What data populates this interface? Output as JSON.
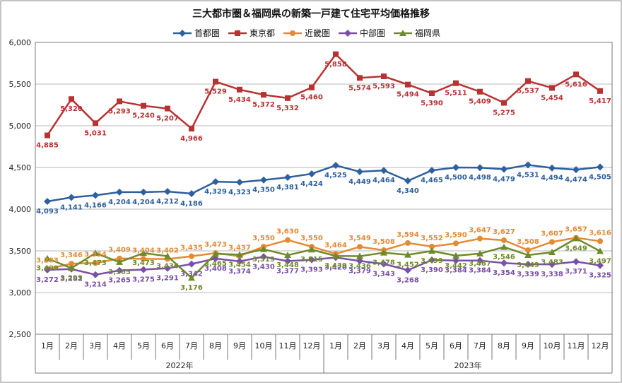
{
  "chart_data": {
    "type": "line",
    "title": "三大都市圏＆福岡県の新築一戸建て住宅平均価格推移",
    "categories": [
      "1月",
      "2月",
      "3月",
      "4月",
      "5月",
      "6月",
      "7月",
      "8月",
      "9月",
      "10月",
      "11月",
      "12月",
      "1月",
      "2月",
      "3月",
      "4月",
      "5月",
      "6月",
      "7月",
      "8月",
      "9月",
      "10月",
      "11月",
      "12月"
    ],
    "year_groups": [
      {
        "label": "2022年",
        "start": 0,
        "end": 11
      },
      {
        "label": "2023年",
        "start": 12,
        "end": 23
      }
    ],
    "ylim": [
      2500,
      6000
    ],
    "yticks": [
      "2,500",
      "3,000",
      "3,500",
      "4,000",
      "4,500",
      "5,000",
      "5,500",
      "6,000"
    ],
    "ytick_values": [
      2500,
      3000,
      3500,
      4000,
      4500,
      5000,
      5500,
      6000
    ],
    "grid": true,
    "legend_position": "top",
    "series": [
      {
        "name": "首都圏",
        "color": "#2e5f9e",
        "marker": "diamond",
        "label_pos": "below",
        "values": [
          4093,
          4141,
          4166,
          4204,
          4204,
          4212,
          4186,
          4329,
          4323,
          4350,
          4381,
          4424,
          4525,
          4449,
          4464,
          4340,
          4465,
          4500,
          4498,
          4479,
          4531,
          4494,
          4474,
          4505
        ],
        "labels": [
          "4,093",
          "4,141",
          "4,166",
          "4,204",
          "4,204",
          "4,212",
          "4,186",
          "4,329",
          "4,323",
          "4,350",
          "4,381",
          "4,424",
          "4,525",
          "4,449",
          "4,464",
          "4,340",
          "4,465",
          "4,500",
          "4,498",
          "4,479",
          "4,531",
          "4,494",
          "4,474",
          "4,505"
        ]
      },
      {
        "name": "東京都",
        "color": "#b83232",
        "marker": "square",
        "label_pos": "below",
        "values": [
          4885,
          5320,
          5031,
          5293,
          5240,
          5207,
          4966,
          5529,
          5434,
          5372,
          5332,
          5460,
          5858,
          5574,
          5593,
          5494,
          5390,
          5511,
          5409,
          5275,
          5537,
          5454,
          5616,
          5417
        ],
        "labels": [
          "4,885",
          "5,320",
          "5,031",
          "5,293",
          "5,240",
          "5,207",
          "4,966",
          "5,529",
          "5,434",
          "5,372",
          "5,332",
          "5,460",
          "5,858",
          "5,574",
          "5,593",
          "5,494",
          "5,390",
          "5,511",
          "5,409",
          "5,275",
          "5,537",
          "5,454",
          "5,616",
          "5,417"
        ]
      },
      {
        "name": "近畿圏",
        "color": "#e48a34",
        "marker": "circle",
        "label_pos": "above",
        "values": [
          3283,
          3346,
          3354,
          3409,
          3404,
          3402,
          3435,
          3473,
          3437,
          3550,
          3630,
          3550,
          3464,
          3549,
          3508,
          3594,
          3552,
          3590,
          3647,
          3627,
          3508,
          3607,
          3657,
          3616
        ],
        "labels": [
          "3,283",
          "3,346",
          "3,354",
          "3,409",
          "3,404",
          "3,402",
          "3,435",
          "3,473",
          "3,437",
          "3,550",
          "3,630",
          "3,550",
          "3,464",
          "3,549",
          "3,508",
          "3,594",
          "3,552",
          "3,590",
          "3,647",
          "3,627",
          "3,508",
          "3,607",
          "3,657",
          "3,616"
        ]
      },
      {
        "name": "中部圏",
        "color": "#7a4fa8",
        "marker": "diamond",
        "label_pos": "below",
        "values": [
          3272,
          3282,
          3214,
          3265,
          3275,
          3291,
          3342,
          3408,
          3374,
          3430,
          3377,
          3393,
          3420,
          3379,
          3343,
          3268,
          3390,
          3384,
          3384,
          3354,
          3339,
          3338,
          3371,
          3325
        ],
        "labels": [
          "3,272",
          "3,282",
          "3,214",
          "3,265",
          "3,275",
          "3,291",
          "3,342",
          "3,408",
          "3,374",
          "3,430",
          "3,377",
          "3,393",
          "3,420",
          "3,379",
          "3,343",
          "3,268",
          "3,390",
          "3,384",
          "3,384",
          "3,354",
          "3,339",
          "3,338",
          "3,371",
          "3,325"
        ]
      },
      {
        "name": "福岡県",
        "color": "#6e8a2a",
        "marker": "triangle",
        "label_pos": "below",
        "values": [
          3409,
          3293,
          3473,
          3365,
          3473,
          3436,
          3176,
          3465,
          3454,
          3519,
          3448,
          3515,
          3439,
          3436,
          3478,
          3452,
          3499,
          3442,
          3467,
          3546,
          3449,
          3483,
          3649,
          3497
        ],
        "labels": [
          "3,409",
          "3,293",
          "3,473",
          "3,365",
          "3,473",
          "3,436",
          "3,176",
          "3,465",
          "3,454",
          "3,519",
          "3,448",
          "3,515",
          "3,439",
          "3,436",
          "3,478",
          "3,452",
          "3,499",
          "3,442",
          "3,467",
          "3,546",
          "3,449",
          "3,483",
          "3,649",
          "3,497"
        ]
      }
    ]
  }
}
